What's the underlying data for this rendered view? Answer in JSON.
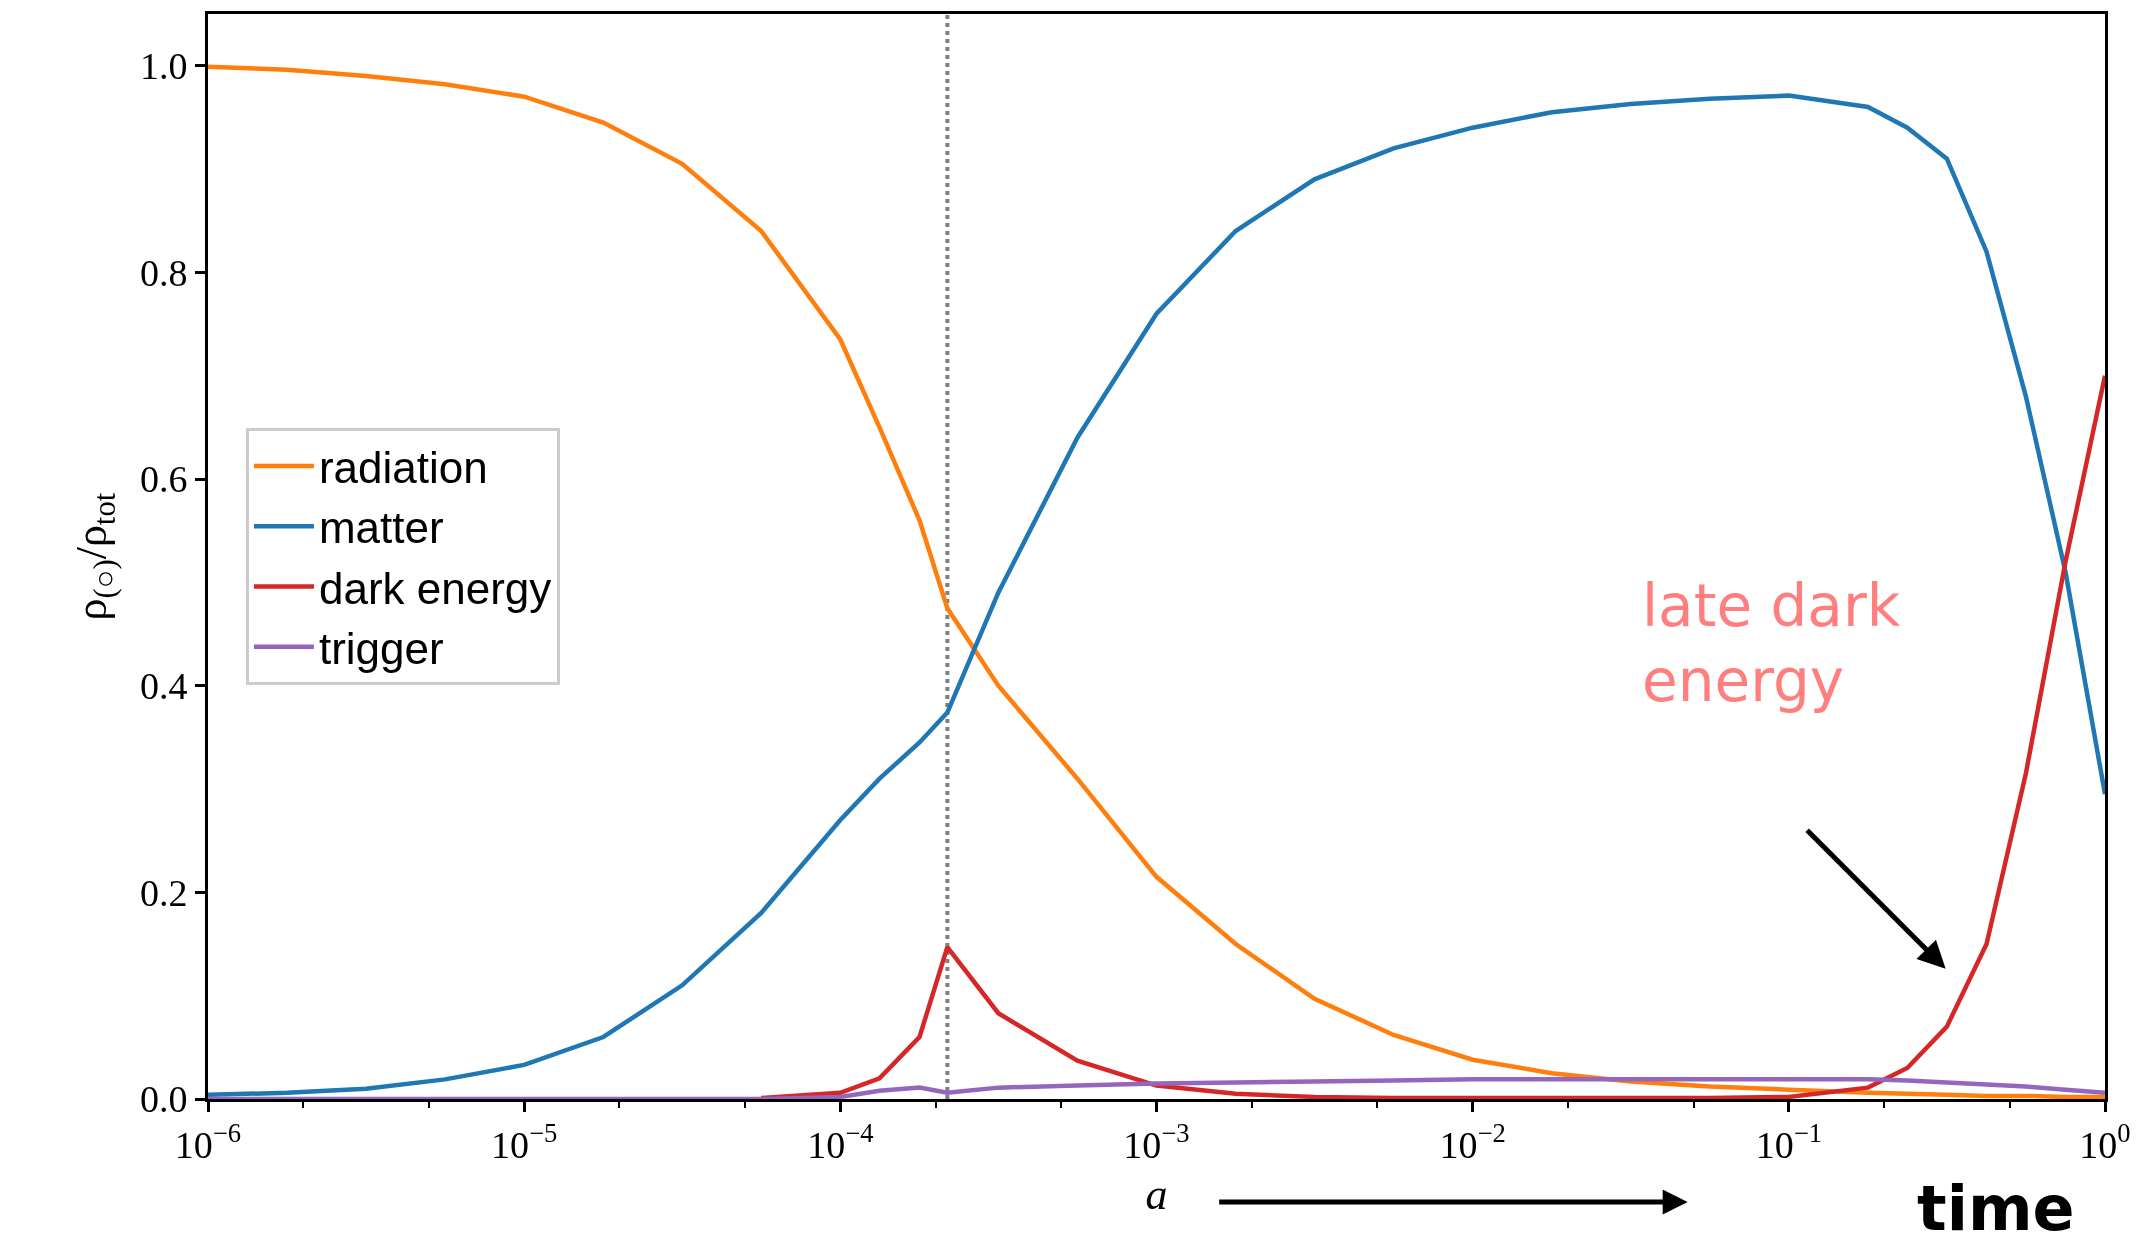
{
  "chart_data": {
    "type": "line",
    "xlabel": "a",
    "ylabel": "ρ$_{(○)}$/ρ$_{tot}$",
    "log": "x",
    "xlim": [
      1e-06,
      1
    ],
    "ylim": [
      0,
      1.05
    ],
    "xticks": [
      {
        "value": 1e-06,
        "label": "10$^{−6}$"
      },
      {
        "value": 1e-05,
        "label": "10$^{−5}$"
      },
      {
        "value": 0.0001,
        "label": "10$^{−4}$"
      },
      {
        "value": 0.001,
        "label": "10$^{−3}$"
      },
      {
        "value": 0.01,
        "label": "10$^{−2}$"
      },
      {
        "value": 0.1,
        "label": "10$^{−1}$"
      },
      {
        "value": 1,
        "label": "10$^{0}$"
      }
    ],
    "yticks": [
      {
        "value": 0,
        "label": "0.0"
      },
      {
        "value": 0.2,
        "label": "0.2"
      },
      {
        "value": 0.4,
        "label": "0.4"
      },
      {
        "value": 0.6,
        "label": "0.6"
      },
      {
        "value": 0.8,
        "label": "0.8"
      },
      {
        "value": 1,
        "label": "1.0"
      }
    ],
    "x": [
      1e-06,
      1.78e-06,
      3.16e-06,
      5.62e-06,
      1e-05,
      1.78e-05,
      3.16e-05,
      5.62e-05,
      0.0001,
      0.000133,
      0.000178,
      0.000218,
      0.000316,
      0.000562,
      0.001,
      0.00178,
      0.00316,
      0.00562,
      0.01,
      0.0178,
      0.0316,
      0.0562,
      0.1,
      0.178,
      0.237,
      0.316,
      0.422,
      0.562,
      0.75,
      1
    ],
    "series": [
      {
        "name": "radiation",
        "color": "#ff7f0e",
        "values": [
          0.999,
          0.996,
          0.99,
          0.982,
          0.97,
          0.945,
          0.905,
          0.84,
          0.735,
          0.65,
          0.56,
          0.475,
          0.4,
          0.31,
          0.215,
          0.15,
          0.097,
          0.062,
          0.038,
          0.025,
          0.017,
          0.012,
          0.009,
          0.006,
          0.005,
          0.004,
          0.003,
          0.003,
          0.002,
          0.002
        ]
      },
      {
        "name": "matter",
        "color": "#1f77b4",
        "values": [
          0.004,
          0.006,
          0.01,
          0.019,
          0.033,
          0.06,
          0.11,
          0.18,
          0.27,
          0.31,
          0.345,
          0.374,
          0.49,
          0.64,
          0.76,
          0.84,
          0.89,
          0.92,
          0.94,
          0.955,
          0.963,
          0.968,
          0.971,
          0.96,
          0.94,
          0.91,
          0.82,
          0.68,
          0.51,
          0.295
        ]
      },
      {
        "name": "dark energy",
        "color": "#d62728",
        "values": [
          null,
          null,
          null,
          null,
          null,
          null,
          null,
          0.001,
          0.006,
          0.02,
          0.06,
          0.147,
          0.083,
          0.037,
          0.013,
          0.005,
          0.002,
          0.001,
          0.001,
          0.001,
          0.001,
          0.001,
          0.002,
          0.011,
          0.03,
          0.07,
          0.15,
          0.315,
          0.52,
          0.7
        ]
      },
      {
        "name": "trigger",
        "color": "#9467bd",
        "values": [
          0,
          0,
          0,
          0,
          0,
          0,
          0,
          0,
          0.002,
          0.008,
          0.011,
          0.006,
          0.011,
          0.013,
          0.015,
          0.016,
          0.017,
          0.018,
          0.019,
          0.019,
          0.019,
          0.019,
          0.019,
          0.019,
          0.018,
          0.016,
          0.014,
          0.012,
          0.009,
          0.006
        ]
      }
    ],
    "ref_lines": [
      {
        "axis": "x",
        "value": 0.000218,
        "color": "#808080",
        "line_style": "dotted"
      }
    ],
    "annotations": [
      "late dark\nenergy",
      "time"
    ],
    "legend": "left",
    "grid": false,
    "marker": "none",
    "line_style": "solid"
  }
}
